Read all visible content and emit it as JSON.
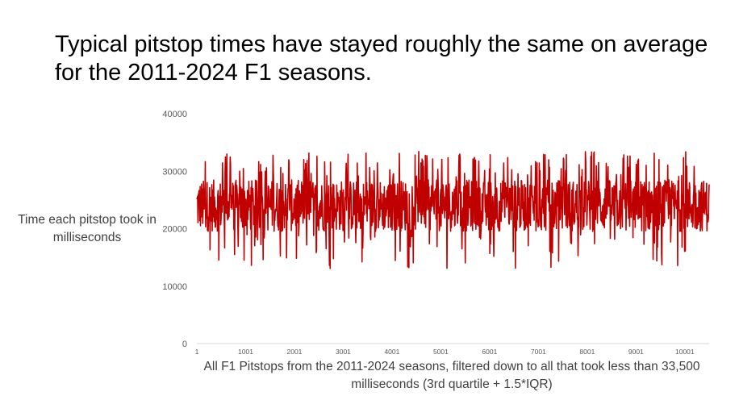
{
  "slide": {
    "title": "Typical pitstop times have stayed roughly the same on average for the 2011-2024 F1 seasons."
  },
  "chart_data": {
    "type": "line",
    "ylabel": "Time each pitstop took in milliseconds",
    "xlabel": "All F1 Pitstops from the 2011-2024 seasons, filtered down to all that took less than 33,500 milliseconds (3rd quartile + 1.5*IQR)",
    "ylim": [
      0,
      40000
    ],
    "xlim": [
      1,
      10500
    ],
    "y_ticks": [
      "0",
      "10000",
      "20000",
      "30000",
      "40000"
    ],
    "x_ticks": [
      "1",
      "1001",
      "2001",
      "3001",
      "4001",
      "5001",
      "6001",
      "7001",
      "8001",
      "9001",
      "10001"
    ],
    "grid": false,
    "legend": "none",
    "series": [
      {
        "color": "#c00000",
        "point_count": 10500,
        "typical_range": [
          20000,
          29000
        ],
        "mean_estimate": 24000,
        "min_estimate": 13000,
        "max_estimate": 33500
      }
    ]
  }
}
